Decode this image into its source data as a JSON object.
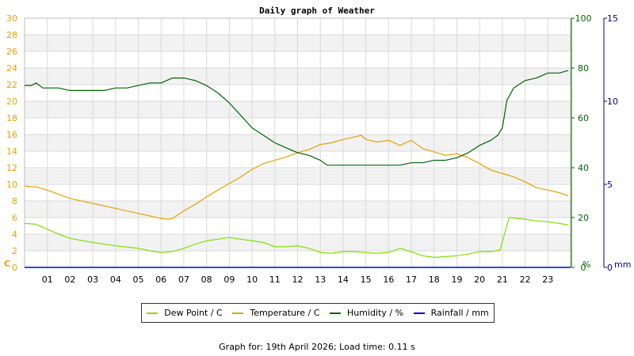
{
  "chart_data": {
    "type": "line",
    "title": "Daily graph of Weather",
    "x_tick_labels": [
      "01",
      "02",
      "03",
      "04",
      "05",
      "06",
      "07",
      "08",
      "09",
      "10",
      "11",
      "12",
      "13",
      "14",
      "15",
      "16",
      "17",
      "18",
      "19",
      "20",
      "21",
      "22",
      "23"
    ],
    "x_range_hours": [
      0,
      24
    ],
    "left_axis": {
      "unit": "C",
      "range": [
        0,
        30
      ],
      "ticks": [
        0,
        2,
        4,
        6,
        8,
        10,
        12,
        14,
        16,
        18,
        20,
        22,
        24,
        26,
        28,
        30
      ],
      "color": "#e8a000"
    },
    "right_axis_1": {
      "unit": "%",
      "range": [
        0,
        100
      ],
      "ticks": [
        0,
        20,
        40,
        60,
        80,
        100
      ],
      "color": "#006400"
    },
    "right_axis_2": {
      "unit": "mm",
      "range": [
        0,
        15
      ],
      "ticks": [
        0,
        5,
        10,
        15
      ],
      "color": "#00008b"
    },
    "grid": true,
    "legend_position": "bottom",
    "series": [
      {
        "name": "Dew Point / C",
        "color": "#7fe000",
        "axis": "left",
        "x": [
          0,
          0.5,
          1,
          1.5,
          2,
          3,
          4,
          5,
          5.5,
          6,
          6.5,
          7,
          7.5,
          8,
          8.5,
          9,
          9.5,
          10,
          10.5,
          11,
          11.5,
          12,
          12.5,
          13,
          13.5,
          14,
          14.5,
          15,
          15.5,
          16,
          16.5,
          17,
          17.5,
          18,
          18.5,
          19,
          19.5,
          20,
          20.5,
          20.9,
          21.3,
          21.7,
          22,
          22.5,
          23,
          23.5,
          23.9
        ],
        "values": [
          5.3,
          5.2,
          4.6,
          4.0,
          3.5,
          3.0,
          2.6,
          2.3,
          2.0,
          1.8,
          1.9,
          2.3,
          2.8,
          3.2,
          3.4,
          3.6,
          3.4,
          3.2,
          3.0,
          2.5,
          2.5,
          2.6,
          2.3,
          1.8,
          1.7,
          1.9,
          1.9,
          1.8,
          1.7,
          1.8,
          2.3,
          1.9,
          1.4,
          1.2,
          1.3,
          1.4,
          1.6,
          1.9,
          1.9,
          2.1,
          6.0,
          5.9,
          5.8,
          5.6,
          5.5,
          5.3,
          5.1
        ]
      },
      {
        "name": "Temperature / C",
        "color": "#e8a000",
        "axis": "left",
        "x": [
          0,
          0.5,
          1,
          1.5,
          2,
          3,
          4,
          5,
          5.5,
          6,
          6.3,
          6.5,
          7,
          7.5,
          8,
          8.5,
          9,
          9.5,
          10,
          10.5,
          11,
          11.5,
          12,
          12.5,
          13,
          13.5,
          14,
          14.5,
          14.8,
          15,
          15.5,
          16,
          16.5,
          17,
          17.5,
          18,
          18.5,
          19,
          19.5,
          20,
          20.5,
          21,
          21.5,
          22,
          22.5,
          23,
          23.5,
          23.9
        ],
        "values": [
          9.8,
          9.7,
          9.3,
          8.8,
          8.3,
          7.7,
          7.1,
          6.5,
          6.2,
          5.9,
          5.8,
          5.9,
          6.8,
          7.6,
          8.5,
          9.3,
          10.1,
          10.9,
          11.8,
          12.5,
          12.9,
          13.3,
          13.8,
          14.2,
          14.8,
          15.0,
          15.4,
          15.7,
          15.9,
          15.4,
          15.1,
          15.3,
          14.7,
          15.3,
          14.3,
          13.9,
          13.5,
          13.7,
          13.2,
          12.5,
          11.7,
          11.3,
          10.9,
          10.3,
          9.6,
          9.3,
          9.0,
          8.6
        ]
      },
      {
        "name": "Humidity / %",
        "color": "#006400",
        "axis": "right_1",
        "x": [
          0,
          0.3,
          0.5,
          0.8,
          1.5,
          2,
          3,
          3.5,
          4,
          4.5,
          5,
          5.5,
          6,
          6.5,
          7,
          7.5,
          8,
          8.5,
          9,
          9.5,
          10,
          10.5,
          11,
          11.5,
          12,
          12.5,
          13,
          13.3,
          13.5,
          14,
          14.5,
          15,
          15.5,
          16,
          16.5,
          17,
          17.5,
          18,
          18.5,
          19,
          19.5,
          20,
          20.5,
          20.8,
          21,
          21.2,
          21.5,
          22,
          22.5,
          23,
          23.5,
          23.9
        ],
        "values": [
          73,
          73,
          74,
          72,
          72,
          71,
          71,
          71,
          72,
          72,
          73,
          74,
          74,
          76,
          76,
          75,
          73,
          70,
          66,
          61,
          56,
          53,
          50,
          48,
          46,
          45,
          43,
          41,
          41,
          41,
          41,
          41,
          41,
          41,
          41,
          42,
          42,
          43,
          43,
          44,
          46,
          49,
          51,
          53,
          56,
          67,
          72,
          75,
          76,
          78,
          78,
          79
        ]
      },
      {
        "name": "Rainfall / mm",
        "color": "#0000cc",
        "axis": "right_2",
        "x": [
          0,
          24
        ],
        "values": [
          0,
          0
        ]
      }
    ]
  },
  "footer": {
    "prefix": "Graph for: ",
    "date": "19th April 2026",
    "load_label": "Load time: 0.11 s"
  }
}
